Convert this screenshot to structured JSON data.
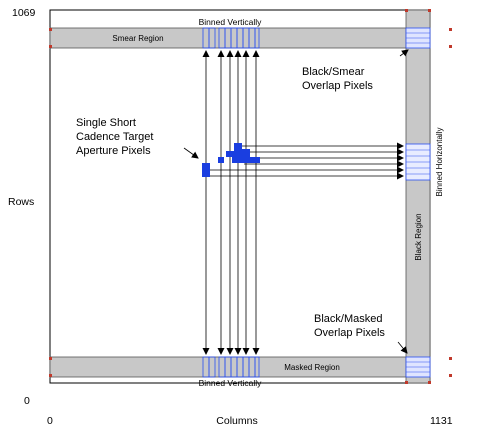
{
  "axes": {
    "y_max": "1069",
    "y_min": "0",
    "y_label": "Rows",
    "x_min": "0",
    "x_label": "Columns",
    "x_max": "1131"
  },
  "regions": {
    "smear": "Smear Region",
    "masked": "Masked Region",
    "black": "Black Region",
    "binned_horizontally": "Binned Horizontally",
    "binned_vertically_top": "Binned Vertically",
    "binned_vertically_bottom": "Binned Vertically"
  },
  "callouts": {
    "target": [
      "Single Short",
      "Cadence Target",
      "Aperture Pixels"
    ],
    "black_smear": [
      "Black/Smear",
      "Overlap Pixels"
    ],
    "black_masked": [
      "Black/Masked",
      "Overlap Pixels"
    ]
  },
  "colors": {
    "region_fill": "#c8c8c8",
    "pixel_blue": "#1a3ee0",
    "corner_red": "#c0392b",
    "line": "#000000"
  }
}
